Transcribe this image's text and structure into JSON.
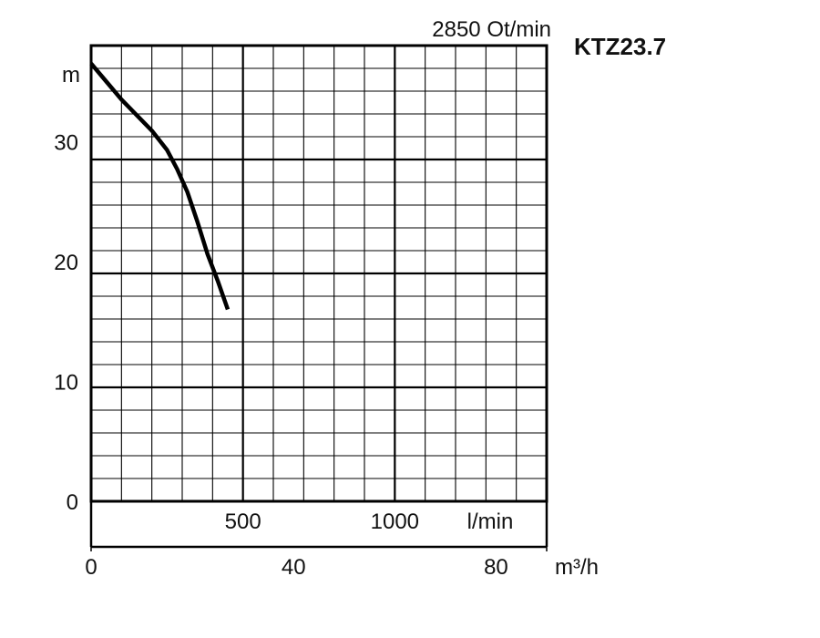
{
  "chart_data": {
    "type": "line",
    "title": "KTZ23.7",
    "subtitle": "2850 Ot/min",
    "ylabel": "m",
    "xlabel_lmin": "l/min",
    "xlabel_m3h": "m³/h",
    "ylim": [
      0,
      38
    ],
    "xlim_m3h": [
      0,
      90
    ],
    "y_ticks": [
      0,
      10,
      20,
      30
    ],
    "x_ticks_lmin": [
      500,
      1000
    ],
    "x_ticks_m3h": [
      0,
      40,
      80
    ],
    "grid": true,
    "series": [
      {
        "x_m3h": [
          0,
          3,
          6,
          9,
          12,
          15,
          17,
          19,
          21,
          23,
          25,
          27
        ],
        "y_m": [
          36.5,
          35.0,
          33.5,
          32.2,
          30.9,
          29.3,
          27.7,
          25.8,
          23.3,
          20.6,
          18.4,
          16.0
        ]
      }
    ],
    "colors": {
      "curve": "#000000",
      "grid": "#000000"
    }
  }
}
